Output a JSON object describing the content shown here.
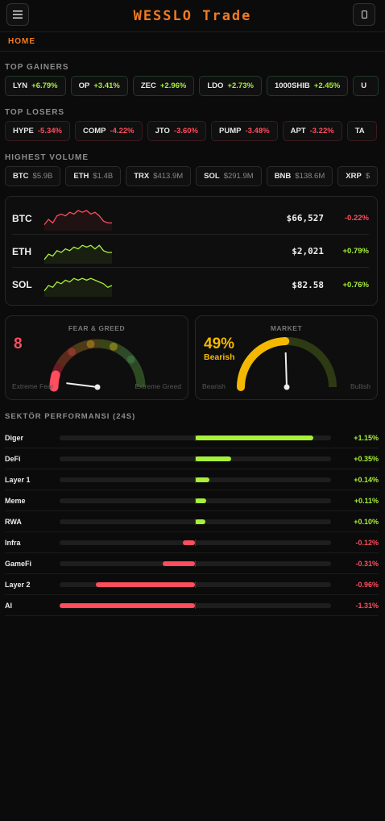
{
  "header": {
    "title": "WESSLO Trade",
    "menu_icon": "menu-icon",
    "device_icon": "mobile-icon"
  },
  "nav": {
    "home": "HOME"
  },
  "colors": {
    "accent": "#f47b20",
    "up": "#a8f03a",
    "down": "#ff4d5e",
    "gauge_mid": "#f5b800"
  },
  "gainers": {
    "label": "TOP GAINERS",
    "items": [
      {
        "symbol": "LYN",
        "change": "+6.79%"
      },
      {
        "symbol": "OP",
        "change": "+3.41%"
      },
      {
        "symbol": "ZEC",
        "change": "+2.96%"
      },
      {
        "symbol": "LDO",
        "change": "+2.73%"
      },
      {
        "symbol": "1000SHIB",
        "change": "+2.45%"
      },
      {
        "symbol": "U",
        "change": ""
      }
    ]
  },
  "losers": {
    "label": "TOP LOSERS",
    "items": [
      {
        "symbol": "HYPE",
        "change": "-5.34%"
      },
      {
        "symbol": "COMP",
        "change": "-4.22%"
      },
      {
        "symbol": "JTO",
        "change": "-3.60%"
      },
      {
        "symbol": "PUMP",
        "change": "-3.48%"
      },
      {
        "symbol": "APT",
        "change": "-3.22%"
      },
      {
        "symbol": "TA",
        "change": ""
      }
    ]
  },
  "volume": {
    "label": "HIGHEST VOLUME",
    "items": [
      {
        "symbol": "BTC",
        "value": "$5.9B"
      },
      {
        "symbol": "ETH",
        "value": "$1.4B"
      },
      {
        "symbol": "TRX",
        "value": "$413.9M"
      },
      {
        "symbol": "SOL",
        "value": "$291.9M"
      },
      {
        "symbol": "BNB",
        "value": "$138.6M"
      },
      {
        "symbol": "XRP",
        "value": "$"
      }
    ]
  },
  "prices": [
    {
      "symbol": "BTC",
      "price": "$66,527",
      "change": "-0.22%",
      "trend": "down",
      "spark": [
        2,
        5,
        3,
        7,
        8,
        7,
        9,
        8,
        10,
        9,
        10,
        8,
        9,
        7,
        4,
        3,
        3
      ]
    },
    {
      "symbol": "ETH",
      "price": "$2,021",
      "change": "+0.79%",
      "trend": "up",
      "spark": [
        1,
        4,
        3,
        6,
        5,
        7,
        6,
        8,
        7,
        9,
        8,
        9,
        7,
        9,
        6,
        5,
        5
      ]
    },
    {
      "symbol": "SOL",
      "price": "$82.58",
      "change": "+0.76%",
      "trend": "up",
      "spark": [
        2,
        5,
        4,
        7,
        6,
        8,
        7,
        9,
        8,
        9,
        8,
        9,
        8,
        7,
        6,
        4,
        5
      ]
    }
  ],
  "fear_greed": {
    "title": "FEAR & GREED",
    "value": "8",
    "value_num": 8,
    "left_label": "Extreme Fear",
    "right_label": "Extreme Greed"
  },
  "market": {
    "title": "MARKET",
    "value": "49%",
    "value_num": 49,
    "status": "Bearish",
    "left_label": "Bearish",
    "right_label": "Bullish"
  },
  "sectors": {
    "label": "SEKTÖR PERFORMANSI (24S)",
    "max_abs": 1.31,
    "items": [
      {
        "name": "Diger",
        "value_num": 1.15,
        "value": "+1.15%"
      },
      {
        "name": "DeFi",
        "value_num": 0.35,
        "value": "+0.35%"
      },
      {
        "name": "Layer 1",
        "value_num": 0.14,
        "value": "+0.14%"
      },
      {
        "name": "Meme",
        "value_num": 0.11,
        "value": "+0.11%"
      },
      {
        "name": "RWA",
        "value_num": 0.1,
        "value": "+0.10%"
      },
      {
        "name": "Infra",
        "value_num": -0.12,
        "value": "-0.12%"
      },
      {
        "name": "GameFi",
        "value_num": -0.31,
        "value": "-0.31%"
      },
      {
        "name": "Layer 2",
        "value_num": -0.96,
        "value": "-0.96%"
      },
      {
        "name": "AI",
        "value_num": -1.31,
        "value": "-1.31%"
      }
    ]
  }
}
